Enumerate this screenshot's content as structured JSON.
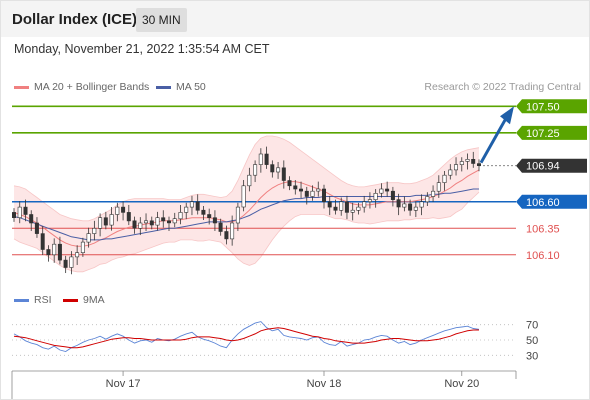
{
  "header": {
    "title": "Dollar Index (ICE)",
    "interval": "30 MIN"
  },
  "timestamp": "Monday, November 21, 2022 1:35:54 AM CET",
  "legend": {
    "ma_bollinger": "MA 20 + Bollinger Bands",
    "ma50": "MA 50",
    "credit": "Research © 2022 Trading Central",
    "rsi": "RSI",
    "rsi_ma": "9MA"
  },
  "colors": {
    "candle": "#333333",
    "bollinger_fill": "#fde3e3",
    "ma20": "#f08080",
    "ma50": "#4a5fa5",
    "target": "#5aa400",
    "pivot": "#1565c0",
    "support": "#e05050",
    "last": "#333333",
    "rsi": "#5c85d6",
    "rsi_ma": "#d00000"
  },
  "chart_data": [
    {
      "type": "candlestick",
      "ylim": [
        105.9,
        107.55
      ],
      "x_ticks": [
        "Nov 17",
        "Nov 18",
        "Nov 20"
      ],
      "series": {
        "close": [
          106.45,
          106.55,
          106.48,
          106.4,
          106.3,
          106.15,
          106.1,
          106.2,
          106.05,
          105.98,
          106.08,
          106.12,
          106.22,
          106.3,
          106.35,
          106.45,
          106.38,
          106.48,
          106.55,
          106.5,
          106.42,
          106.35,
          106.4,
          106.42,
          106.38,
          106.45,
          106.42,
          106.4,
          106.44,
          106.5,
          106.55,
          106.6,
          106.52,
          106.48,
          106.45,
          106.4,
          106.32,
          106.25,
          106.4,
          106.55,
          106.75,
          106.85,
          106.95,
          107.05,
          106.95,
          106.88,
          106.92,
          106.8,
          106.75,
          106.72,
          106.7,
          106.65,
          106.7,
          106.72,
          106.6,
          106.55,
          106.52,
          106.6,
          106.5,
          106.52,
          106.55,
          106.6,
          106.62,
          106.68,
          106.72,
          106.7,
          106.62,
          106.55,
          106.58,
          106.52,
          106.55,
          106.6,
          106.65,
          106.7,
          106.78,
          106.85,
          106.9,
          106.95,
          106.98,
          107.0,
          106.96,
          106.94
        ],
        "ma20": [
          106.5,
          106.48,
          106.46,
          106.43,
          106.4,
          106.36,
          106.32,
          106.28,
          106.24,
          106.21,
          106.19,
          106.18,
          106.18,
          106.19,
          106.21,
          106.24,
          106.26,
          106.29,
          106.32,
          106.34,
          106.36,
          106.37,
          106.38,
          106.39,
          106.4,
          106.41,
          106.42,
          106.42,
          106.42,
          106.43,
          106.44,
          106.45,
          106.45,
          106.45,
          106.45,
          106.44,
          106.43,
          106.41,
          106.41,
          106.43,
          106.47,
          106.52,
          106.58,
          106.64,
          106.69,
          106.73,
          106.76,
          106.78,
          106.79,
          106.79,
          106.78,
          106.76,
          106.74,
          106.72,
          106.7,
          106.67,
          106.64,
          106.62,
          106.6,
          106.58,
          106.57,
          106.57,
          106.57,
          106.58,
          106.59,
          106.6,
          106.6,
          106.6,
          106.6,
          106.6,
          106.61,
          106.62,
          106.63,
          106.65,
          106.67,
          106.7,
          106.73,
          106.77,
          106.8,
          106.84,
          106.87,
          106.9
        ],
        "bb_upper": [
          106.75,
          106.74,
          106.72,
          106.68,
          106.64,
          106.6,
          106.56,
          106.52,
          106.48,
          106.46,
          106.44,
          106.43,
          106.42,
          106.42,
          106.44,
          106.47,
          106.5,
          106.53,
          106.57,
          106.6,
          106.62,
          106.63,
          106.63,
          106.63,
          106.63,
          106.63,
          106.63,
          106.62,
          106.62,
          106.62,
          106.64,
          106.66,
          106.67,
          106.67,
          106.66,
          106.65,
          106.64,
          106.65,
          106.7,
          106.8,
          106.92,
          107.04,
          107.14,
          107.2,
          107.22,
          107.22,
          107.21,
          107.19,
          107.16,
          107.12,
          107.08,
          107.04,
          107.0,
          106.96,
          106.92,
          106.88,
          106.84,
          106.8,
          106.77,
          106.75,
          106.74,
          106.74,
          106.75,
          106.76,
          106.77,
          106.78,
          106.78,
          106.78,
          106.77,
          106.77,
          106.78,
          106.8,
          106.82,
          106.85,
          106.9,
          106.95,
          107.0,
          107.04,
          107.07,
          107.09,
          107.1,
          107.11
        ],
        "bb_lower": [
          106.25,
          106.22,
          106.2,
          106.18,
          106.16,
          106.12,
          106.08,
          106.04,
          106.0,
          105.97,
          105.95,
          105.94,
          105.94,
          105.96,
          105.98,
          106.01,
          106.02,
          106.05,
          106.07,
          106.08,
          106.1,
          106.11,
          106.13,
          106.15,
          106.17,
          106.19,
          106.21,
          106.22,
          106.22,
          106.24,
          106.24,
          106.24,
          106.23,
          106.23,
          106.24,
          106.23,
          106.22,
          106.17,
          106.12,
          106.06,
          106.02,
          106.0,
          106.02,
          106.08,
          106.16,
          106.24,
          106.31,
          106.37,
          106.42,
          106.46,
          106.48,
          106.48,
          106.48,
          106.48,
          106.48,
          106.46,
          106.44,
          106.44,
          106.43,
          106.41,
          106.4,
          106.4,
          106.39,
          106.4,
          106.41,
          106.42,
          106.42,
          106.42,
          106.43,
          106.43,
          106.44,
          106.44,
          106.44,
          106.45,
          106.44,
          106.45,
          106.46,
          106.5,
          106.53,
          106.59,
          106.64,
          106.69
        ],
        "ma50": [
          106.46,
          106.45,
          106.43,
          106.41,
          106.39,
          106.37,
          106.35,
          106.33,
          106.31,
          106.29,
          106.27,
          106.26,
          106.25,
          106.24,
          106.24,
          106.24,
          106.25,
          106.25,
          106.26,
          106.27,
          106.28,
          106.29,
          106.3,
          106.31,
          106.32,
          106.33,
          106.34,
          106.35,
          106.35,
          106.36,
          106.37,
          106.38,
          106.39,
          106.4,
          106.41,
          106.41,
          106.41,
          106.41,
          106.42,
          106.43,
          106.45,
          106.47,
          106.5,
          106.53,
          106.55,
          106.57,
          106.59,
          106.61,
          106.62,
          106.63,
          106.63,
          106.64,
          106.64,
          106.64,
          106.65,
          106.65,
          106.65,
          106.65,
          106.65,
          106.65,
          106.65,
          106.65,
          106.65,
          106.65,
          106.65,
          106.65,
          106.65,
          106.65,
          106.65,
          106.65,
          106.66,
          106.66,
          106.66,
          106.67,
          106.67,
          106.68,
          106.68,
          106.69,
          106.7,
          106.71,
          106.72,
          106.72
        ]
      },
      "levels": [
        {
          "name": "target-2",
          "value": 107.5,
          "label": "107.50",
          "kind": "target"
        },
        {
          "name": "target-1",
          "value": 107.25,
          "label": "107.25",
          "kind": "target"
        },
        {
          "name": "last-price",
          "value": 106.94,
          "label": "106.94",
          "kind": "last"
        },
        {
          "name": "pivot",
          "value": 106.6,
          "label": "106.60",
          "kind": "pivot"
        },
        {
          "name": "support-1",
          "value": 106.35,
          "label": "106.35",
          "kind": "support"
        },
        {
          "name": "support-2",
          "value": 106.1,
          "label": "106.10",
          "kind": "support"
        }
      ]
    },
    {
      "type": "line",
      "ylim": [
        20,
        80
      ],
      "y_ticks": [
        "70",
        "50",
        "30"
      ],
      "series": [
        {
          "name": "RSI",
          "values": [
            58,
            54,
            49,
            46,
            44,
            40,
            38,
            42,
            37,
            35,
            40,
            43,
            47,
            50,
            52,
            55,
            51,
            55,
            58,
            55,
            50,
            46,
            49,
            50,
            47,
            52,
            50,
            49,
            51,
            55,
            58,
            60,
            54,
            51,
            49,
            46,
            42,
            40,
            50,
            58,
            64,
            68,
            72,
            74,
            66,
            62,
            64,
            56,
            54,
            53,
            52,
            50,
            53,
            54,
            47,
            44,
            43,
            48,
            42,
            44,
            46,
            50,
            51,
            54,
            56,
            55,
            50,
            46,
            48,
            44,
            46,
            50,
            53,
            56,
            59,
            62,
            64,
            66,
            67,
            68,
            65,
            64
          ]
        },
        {
          "name": "9MA",
          "values": [
            55,
            54,
            53,
            51,
            49,
            47,
            45,
            43,
            42,
            41,
            40,
            40,
            41,
            43,
            45,
            47,
            49,
            51,
            52,
            53,
            53,
            52,
            52,
            51,
            50,
            50,
            50,
            50,
            50,
            50,
            51,
            53,
            54,
            54,
            54,
            53,
            52,
            50,
            49,
            50,
            52,
            55,
            58,
            62,
            64,
            65,
            66,
            65,
            63,
            61,
            59,
            57,
            55,
            54,
            52,
            51,
            49,
            48,
            47,
            46,
            46,
            46,
            47,
            48,
            50,
            51,
            52,
            52,
            51,
            50,
            49,
            49,
            49,
            50,
            51,
            53,
            55,
            58,
            60,
            62,
            63,
            63
          ]
        }
      ]
    }
  ]
}
